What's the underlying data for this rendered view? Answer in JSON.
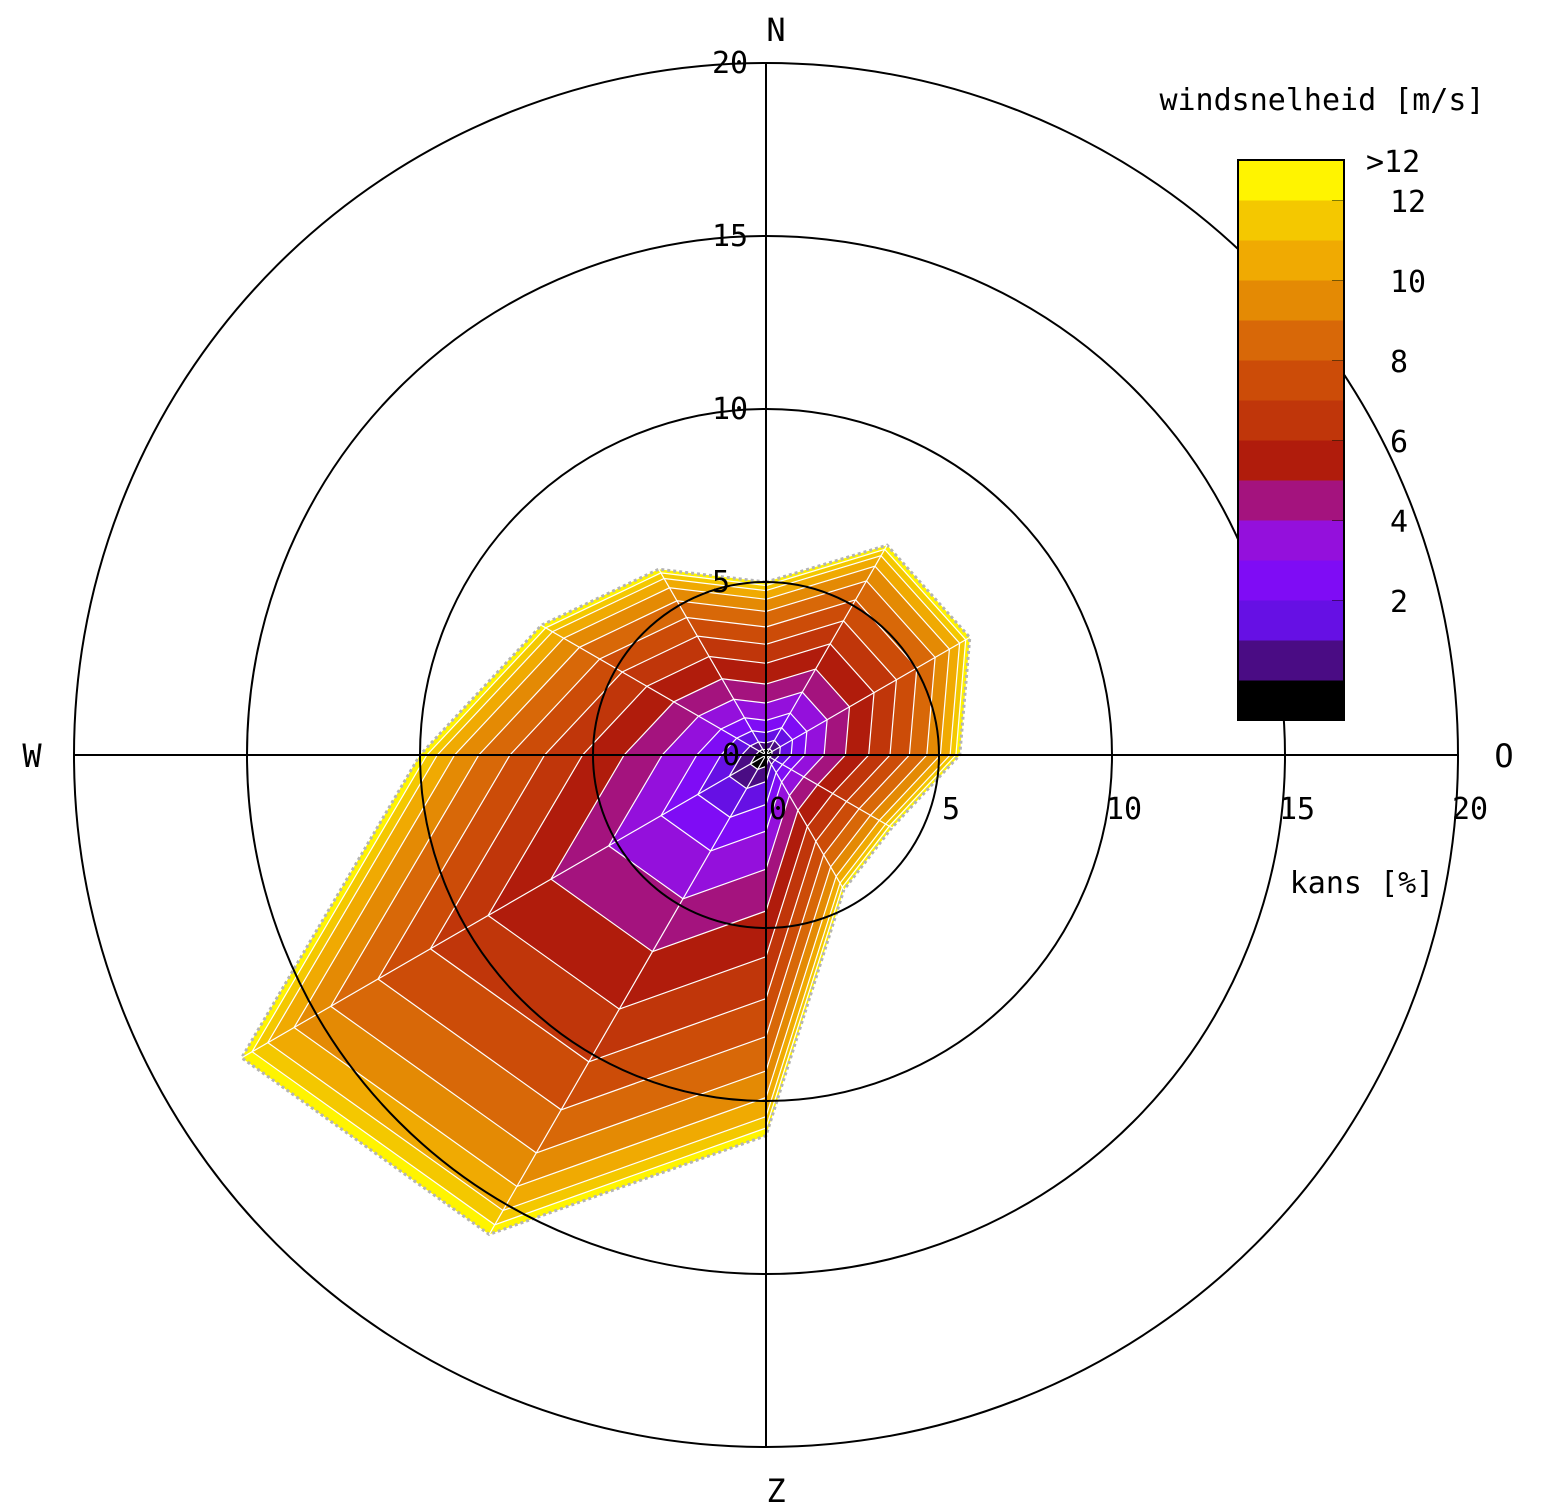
{
  "chart_data": {
    "type": "area",
    "subtype": "wind-rose",
    "legend": {
      "title": "windsnelheid [m/s]",
      "bands": [
        {
          "label": "",
          "color": "#000000"
        },
        {
          "label": "",
          "color": "#4a0c84"
        },
        {
          "label": "2",
          "color": "#6610e4"
        },
        {
          "label": "",
          "color": "#7f0cf5"
        },
        {
          "label": "4",
          "color": "#9410dc"
        },
        {
          "label": "",
          "color": "#a4137e"
        },
        {
          "label": "6",
          "color": "#b01c0c"
        },
        {
          "label": "",
          "color": "#c0360a"
        },
        {
          "label": "8",
          "color": "#cc4c08"
        },
        {
          "label": "",
          "color": "#d86808"
        },
        {
          "label": "10",
          "color": "#e48a04"
        },
        {
          "label": "",
          "color": "#f0aa02"
        },
        {
          "label": "12",
          "color": "#f4c800"
        },
        {
          "label": ">12",
          "color": "#fff400"
        }
      ]
    },
    "radial_axis": {
      "label": "kans [%]",
      "ticks": [
        "0",
        "5",
        "10",
        "15",
        "20"
      ],
      "max": 20
    },
    "directions": {
      "labels": {
        "north": "N",
        "east": "O",
        "south": "Z",
        "west": "W"
      },
      "angles_deg": [
        0,
        30,
        60,
        90,
        120,
        150,
        180,
        210,
        240,
        270,
        300,
        330
      ]
    },
    "cumulative_probability_percent": [
      5.0,
      7.0,
      6.8,
      5.6,
      4.2,
      4.5,
      11.0,
      16.0,
      17.5,
      10.0,
      7.5,
      6.2
    ],
    "band_fractions": [
      0.03,
      0.07,
      0.13,
      0.2,
      0.3,
      0.41,
      0.53,
      0.64,
      0.74,
      0.83,
      0.9,
      0.95,
      0.98,
      1.0
    ]
  }
}
